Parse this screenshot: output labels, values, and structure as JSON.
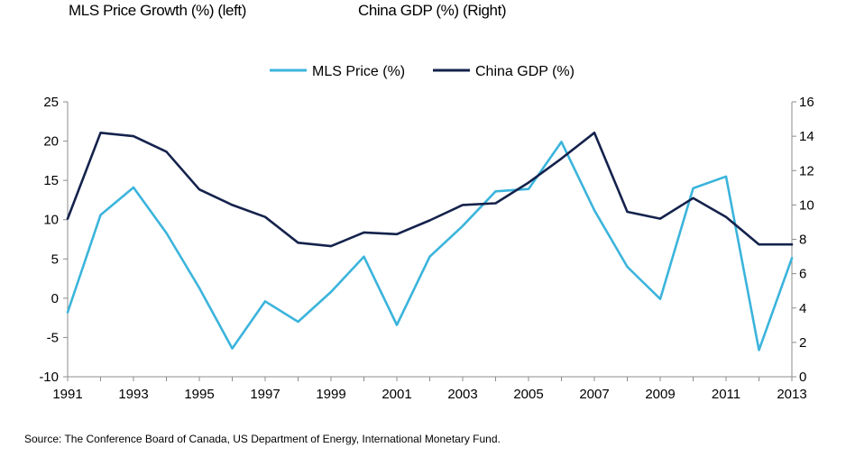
{
  "header": {
    "left_title": "MLS Price Growth (%)  (left)",
    "right_title": "China GDP  (%) (Right)"
  },
  "source": "Source: The Conference Board of Canada, US Department of Energy, International Monetary Fund.",
  "chart_data": {
    "type": "line",
    "title": "",
    "xlabel": "",
    "ylabel_left": "MLS Price Growth (%)",
    "ylabel_right": "China GDP (%)",
    "x": [
      1991,
      1992,
      1993,
      1994,
      1995,
      1996,
      1997,
      1998,
      1999,
      2000,
      2001,
      2002,
      2003,
      2004,
      2005,
      2006,
      2007,
      2008,
      2009,
      2010,
      2011,
      2012,
      2013
    ],
    "x_tick_labels": [
      "1991",
      "1993",
      "1995",
      "1997",
      "1999",
      "2001",
      "2003",
      "2005",
      "2007",
      "2009",
      "2011",
      "2013"
    ],
    "y_left_ticks": [
      "25",
      "20",
      "15",
      "10",
      "5",
      "0",
      "-5",
      "-10"
    ],
    "y_right_ticks": [
      "16",
      "14",
      "12",
      "10",
      "8",
      "6",
      "4",
      "2",
      "0"
    ],
    "ylim_left": [
      -10,
      25
    ],
    "ylim_right": [
      0,
      16
    ],
    "legend_position": "top-center",
    "grid": false,
    "series": [
      {
        "name": "MLS Price (%)",
        "axis": "left",
        "color": "#3bb4dc",
        "values": [
          -1.8,
          10.6,
          14.1,
          8.3,
          1.3,
          -6.4,
          -0.4,
          -3.0,
          0.8,
          5.3,
          -3.4,
          5.3,
          9.2,
          13.6,
          13.9,
          19.9,
          11.2,
          4.0,
          -0.1,
          14.0,
          15.5,
          -6.6,
          5.1
        ]
      },
      {
        "name": "China GDP (%)",
        "axis": "right",
        "color": "#14224c",
        "values": [
          9.2,
          14.2,
          14.0,
          13.1,
          10.9,
          10.0,
          9.3,
          7.8,
          7.6,
          8.4,
          8.3,
          9.1,
          10.0,
          10.1,
          11.3,
          12.7,
          14.2,
          9.6,
          9.2,
          10.4,
          9.3,
          7.7,
          7.7
        ]
      }
    ]
  }
}
